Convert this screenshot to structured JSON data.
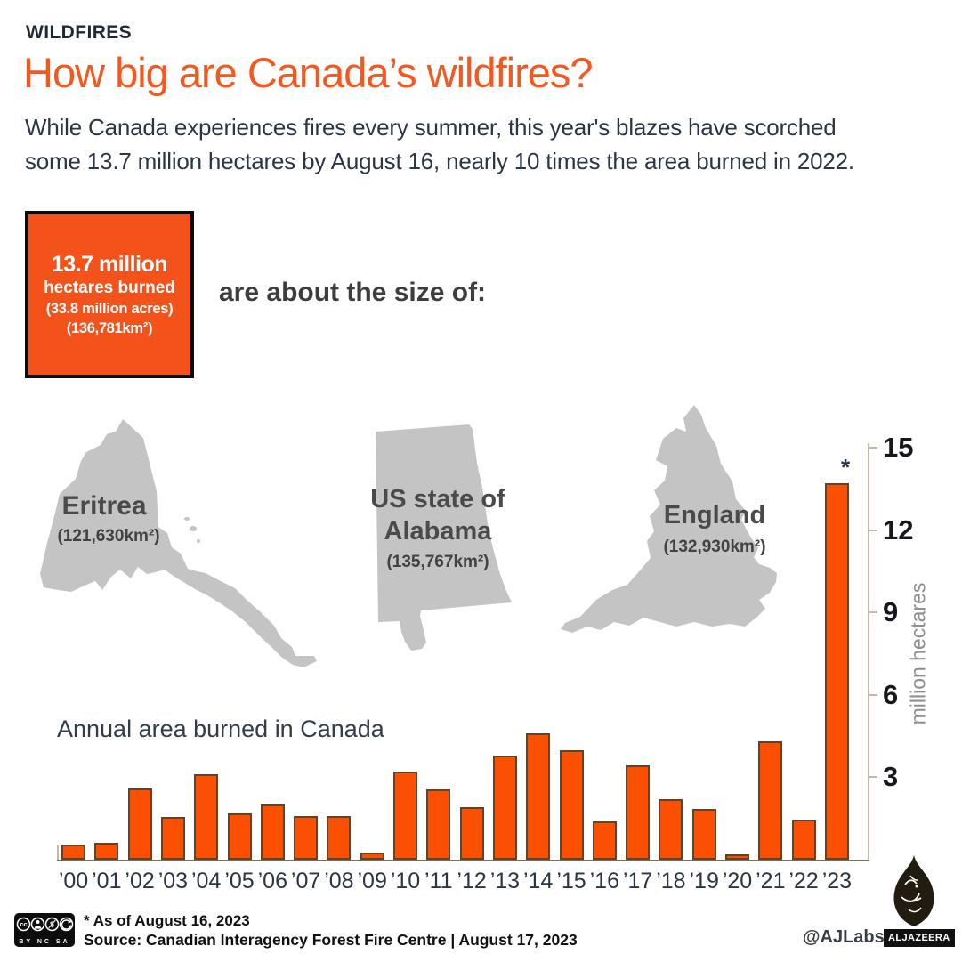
{
  "header": {
    "kicker": "WILDFIRES",
    "title": "How big are Canada’s wildfires?",
    "subtitle_line1": "While Canada experiences fires every summer, this year's blazes have scorched",
    "subtitle_line2": "some 13.7 million hectares by August 16, nearly 10 times the area burned in 2022."
  },
  "highlight": {
    "value": "13.7 million",
    "label": "hectares burned",
    "acres": "(33.8 million acres)",
    "km2": "(136,781km²)"
  },
  "comparison": {
    "intro": "are about the size of:",
    "regions": [
      {
        "name": "Eritrea",
        "area": "(121,630km²)"
      },
      {
        "name_line1": "US state of",
        "name_line2": "Alabama",
        "area": "(135,767km²)"
      },
      {
        "name": "England",
        "area": "(132,930km²)"
      }
    ]
  },
  "chart_data": {
    "type": "bar",
    "title": "Annual area burned in Canada",
    "ylabel": "million hectares",
    "yticks": [
      3,
      6,
      9,
      12,
      15
    ],
    "ylim": [
      0,
      15
    ],
    "categories": [
      "’00",
      "’01",
      "’02",
      "’03",
      "’04",
      "’05",
      "’06",
      "’07",
      "’08",
      "’09",
      "’10",
      "’11",
      "’12",
      "’13",
      "’14",
      "’15",
      "’16",
      "’17",
      "’18",
      "’19",
      "’20",
      "’21",
      "’22",
      "’23"
    ],
    "values": [
      0.55,
      0.6,
      2.6,
      1.55,
      3.1,
      1.7,
      2.0,
      1.6,
      1.6,
      0.25,
      3.2,
      2.55,
      1.9,
      3.8,
      4.6,
      4.0,
      1.4,
      3.45,
      2.2,
      1.85,
      0.2,
      4.3,
      1.45,
      13.7
    ],
    "note_marker": "*",
    "grid": false,
    "legend": "none",
    "bar_color": "#fb5002",
    "bar_stroke": "#5e4429"
  },
  "footer": {
    "footnote": "* As of August 16, 2023",
    "source": "Source: Canadian Interagency Forest Fire Centre   |   August 17, 2023",
    "credit": "@AJLabs",
    "wordmark": "ALJAZEERA",
    "cc_levels": "BY  NC  SA",
    "cc_icon": "cc-license-icon",
    "logo_icon": "aljazeera-flame-logo-icon"
  },
  "colors": {
    "accent_orange": "#f4581e",
    "box_orange": "#f4521b",
    "bar_orange": "#fb5002",
    "bar_stroke": "#5e4429",
    "map_gray": "#c4c4c4",
    "navy_text": "#2c3543",
    "axis_tan": "#c9b7a5"
  }
}
